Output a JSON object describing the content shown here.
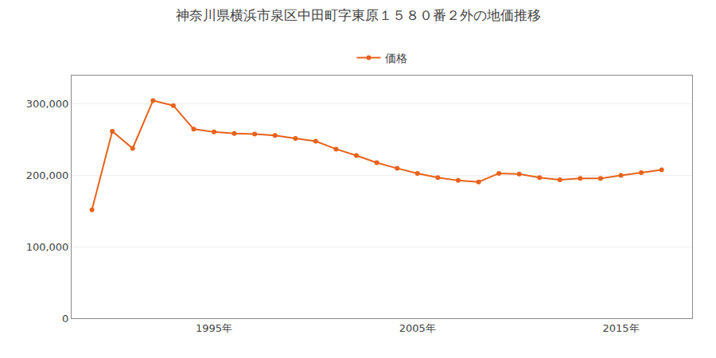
{
  "chart_data": {
    "type": "line",
    "title": "神奈川県横浜市泉区中田町字東原１５８０番２外の地価推移",
    "x": [
      1989,
      1990,
      1991,
      1992,
      1993,
      1994,
      1995,
      1996,
      1997,
      1998,
      1999,
      2000,
      2001,
      2002,
      2003,
      2004,
      2005,
      2006,
      2007,
      2008,
      2009,
      2010,
      2011,
      2012,
      2013,
      2014,
      2015,
      2016,
      2017
    ],
    "series": [
      {
        "name": "価格",
        "color": "#E8621A",
        "values": [
          152000,
          262000,
          238000,
          305000,
          298000,
          265000,
          261000,
          259000,
          258000,
          256000,
          252000,
          248000,
          237000,
          228000,
          218000,
          210000,
          203000,
          197000,
          193000,
          191000,
          203000,
          202000,
          197000,
          194000,
          196000,
          196000,
          200000,
          204000,
          208000
        ]
      }
    ],
    "xlim": [
      1988.0,
      2018.5
    ],
    "xticks": [
      {
        "value": 1995,
        "label": "1995年"
      },
      {
        "value": 2005,
        "label": "2005年"
      },
      {
        "value": 2015,
        "label": "2015年"
      }
    ],
    "ylim": [
      0,
      340000
    ],
    "yticks": [
      0,
      {
        "value": 100000,
        "label": "100,000"
      },
      {
        "value": 200000,
        "label": "200,000"
      },
      {
        "value": 300000,
        "label": "300,000"
      }
    ],
    "grid": "y",
    "legend": "top",
    "marker": "circle"
  }
}
